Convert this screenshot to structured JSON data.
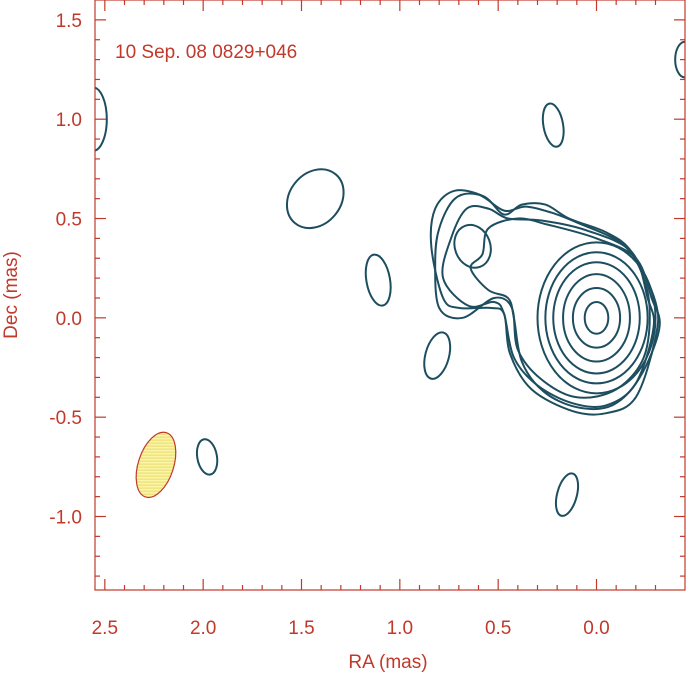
{
  "chart_data": {
    "type": "contour",
    "title": "10 Sep. 08  0829+046",
    "xlabel": "RA (mas)",
    "ylabel": "Dec (mas)",
    "xlim": [
      2.55,
      -0.45
    ],
    "ylim": [
      -1.37,
      1.6
    ],
    "x_ticks": [
      2.5,
      2.0,
      1.5,
      1.0,
      0.5,
      0.0
    ],
    "x_tick_labels": [
      "2.5",
      "2.0",
      "1.5",
      "1.0",
      "0.5",
      "0.0"
    ],
    "y_ticks": [
      1.5,
      1.0,
      0.5,
      0.0,
      -0.5,
      -1.0
    ],
    "y_tick_labels": [
      "1.5",
      "1.0",
      "0.5",
      "0.0",
      "-0.5",
      "-1.0"
    ],
    "colors": {
      "axes": "#c0392b",
      "contours": "#1d4e5f",
      "beam_fill": "#fbf5a6"
    },
    "core": {
      "center": [
        0.0,
        0.0
      ],
      "levels": [
        {
          "rx": 0.06,
          "ry": 0.08
        },
        {
          "rx": 0.12,
          "ry": 0.15
        },
        {
          "rx": 0.17,
          "ry": 0.22
        },
        {
          "rx": 0.22,
          "ry": 0.28
        },
        {
          "rx": 0.26,
          "ry": 0.33
        },
        {
          "rx": 0.3,
          "ry": 0.38
        }
      ]
    },
    "jet_contours": [
      [
        [
          0.64,
          0.25
        ],
        [
          0.58,
          0.32
        ],
        [
          0.55,
          0.45
        ],
        [
          0.4,
          0.5
        ],
        [
          0.25,
          0.47
        ],
        [
          0.0,
          0.4
        ],
        [
          -0.2,
          0.3
        ],
        [
          -0.28,
          0.1
        ],
        [
          -0.32,
          -0.05
        ],
        [
          -0.22,
          -0.3
        ],
        [
          -0.08,
          -0.44
        ],
        [
          0.1,
          -0.45
        ],
        [
          0.27,
          -0.37
        ],
        [
          0.38,
          -0.22
        ],
        [
          0.42,
          0.0
        ],
        [
          0.45,
          0.1
        ],
        [
          0.55,
          0.14
        ]
      ],
      [
        [
          0.78,
          0.2
        ],
        [
          0.74,
          0.4
        ],
        [
          0.66,
          0.55
        ],
        [
          0.55,
          0.55
        ],
        [
          0.45,
          0.5
        ],
        [
          0.28,
          0.49
        ],
        [
          0.05,
          0.44
        ],
        [
          -0.18,
          0.33
        ],
        [
          -0.26,
          0.1
        ],
        [
          -0.29,
          -0.05
        ],
        [
          -0.2,
          -0.33
        ],
        [
          -0.05,
          -0.44
        ],
        [
          0.12,
          -0.43
        ],
        [
          0.3,
          -0.34
        ],
        [
          0.42,
          -0.2
        ],
        [
          0.47,
          0.02
        ],
        [
          0.52,
          0.08
        ],
        [
          0.65,
          0.06
        ]
      ],
      [
        [
          0.82,
          0.28
        ],
        [
          0.8,
          0.45
        ],
        [
          0.72,
          0.6
        ],
        [
          0.6,
          0.62
        ],
        [
          0.47,
          0.54
        ],
        [
          0.36,
          0.56
        ],
        [
          0.23,
          0.53
        ],
        [
          0.1,
          0.48
        ],
        [
          -0.12,
          0.38
        ],
        [
          -0.22,
          0.25
        ],
        [
          -0.27,
          0.05
        ],
        [
          -0.24,
          -0.2
        ],
        [
          -0.1,
          -0.36
        ],
        [
          0.1,
          -0.4
        ],
        [
          0.28,
          -0.31
        ],
        [
          0.4,
          -0.16
        ],
        [
          0.43,
          0.05
        ],
        [
          0.52,
          0.1
        ],
        [
          0.68,
          0.0
        ],
        [
          0.8,
          0.05
        ]
      ],
      [
        [
          0.84,
          0.36
        ],
        [
          0.82,
          0.55
        ],
        [
          0.72,
          0.64
        ],
        [
          0.57,
          0.61
        ],
        [
          0.47,
          0.52
        ],
        [
          0.38,
          0.57
        ],
        [
          0.26,
          0.57
        ],
        [
          0.14,
          0.5
        ],
        [
          -0.05,
          0.43
        ],
        [
          -0.18,
          0.33
        ],
        [
          -0.3,
          0.08
        ],
        [
          -0.3,
          -0.1
        ],
        [
          -0.2,
          -0.4
        ],
        [
          -0.05,
          -0.48
        ],
        [
          0.12,
          -0.47
        ],
        [
          0.33,
          -0.36
        ],
        [
          0.44,
          -0.18
        ],
        [
          0.47,
          0.02
        ],
        [
          0.54,
          0.05
        ],
        [
          0.7,
          0.05
        ],
        [
          0.78,
          0.1
        ]
      ]
    ],
    "islands": [
      {
        "x": 0.63,
        "y": 0.36,
        "rx": 0.09,
        "ry": 0.11,
        "angle": -20
      },
      {
        "x": 1.43,
        "y": 0.6,
        "rx": 0.13,
        "ry": 0.16,
        "angle": 40
      },
      {
        "x": 1.11,
        "y": 0.19,
        "rx": 0.06,
        "ry": 0.13,
        "angle": -10
      },
      {
        "x": 0.81,
        "y": -0.19,
        "rx": 0.06,
        "ry": 0.12,
        "angle": 15
      },
      {
        "x": 0.22,
        "y": 0.97,
        "rx": 0.05,
        "ry": 0.11,
        "angle": -10
      },
      {
        "x": 1.98,
        "y": -0.7,
        "rx": 0.05,
        "ry": 0.09,
        "angle": -10
      },
      {
        "x": 0.15,
        "y": -0.89,
        "rx": 0.05,
        "ry": 0.11,
        "angle": 15
      },
      {
        "x": 2.56,
        "y": 1.0,
        "rx": 0.07,
        "ry": 0.16,
        "angle": 0
      },
      {
        "x": -0.45,
        "y": 1.3,
        "rx": 0.05,
        "ry": 0.09,
        "angle": 0
      }
    ],
    "beam": {
      "x": 2.24,
      "y": -0.74,
      "major": 0.17,
      "minor": 0.09,
      "angle": 18
    }
  }
}
